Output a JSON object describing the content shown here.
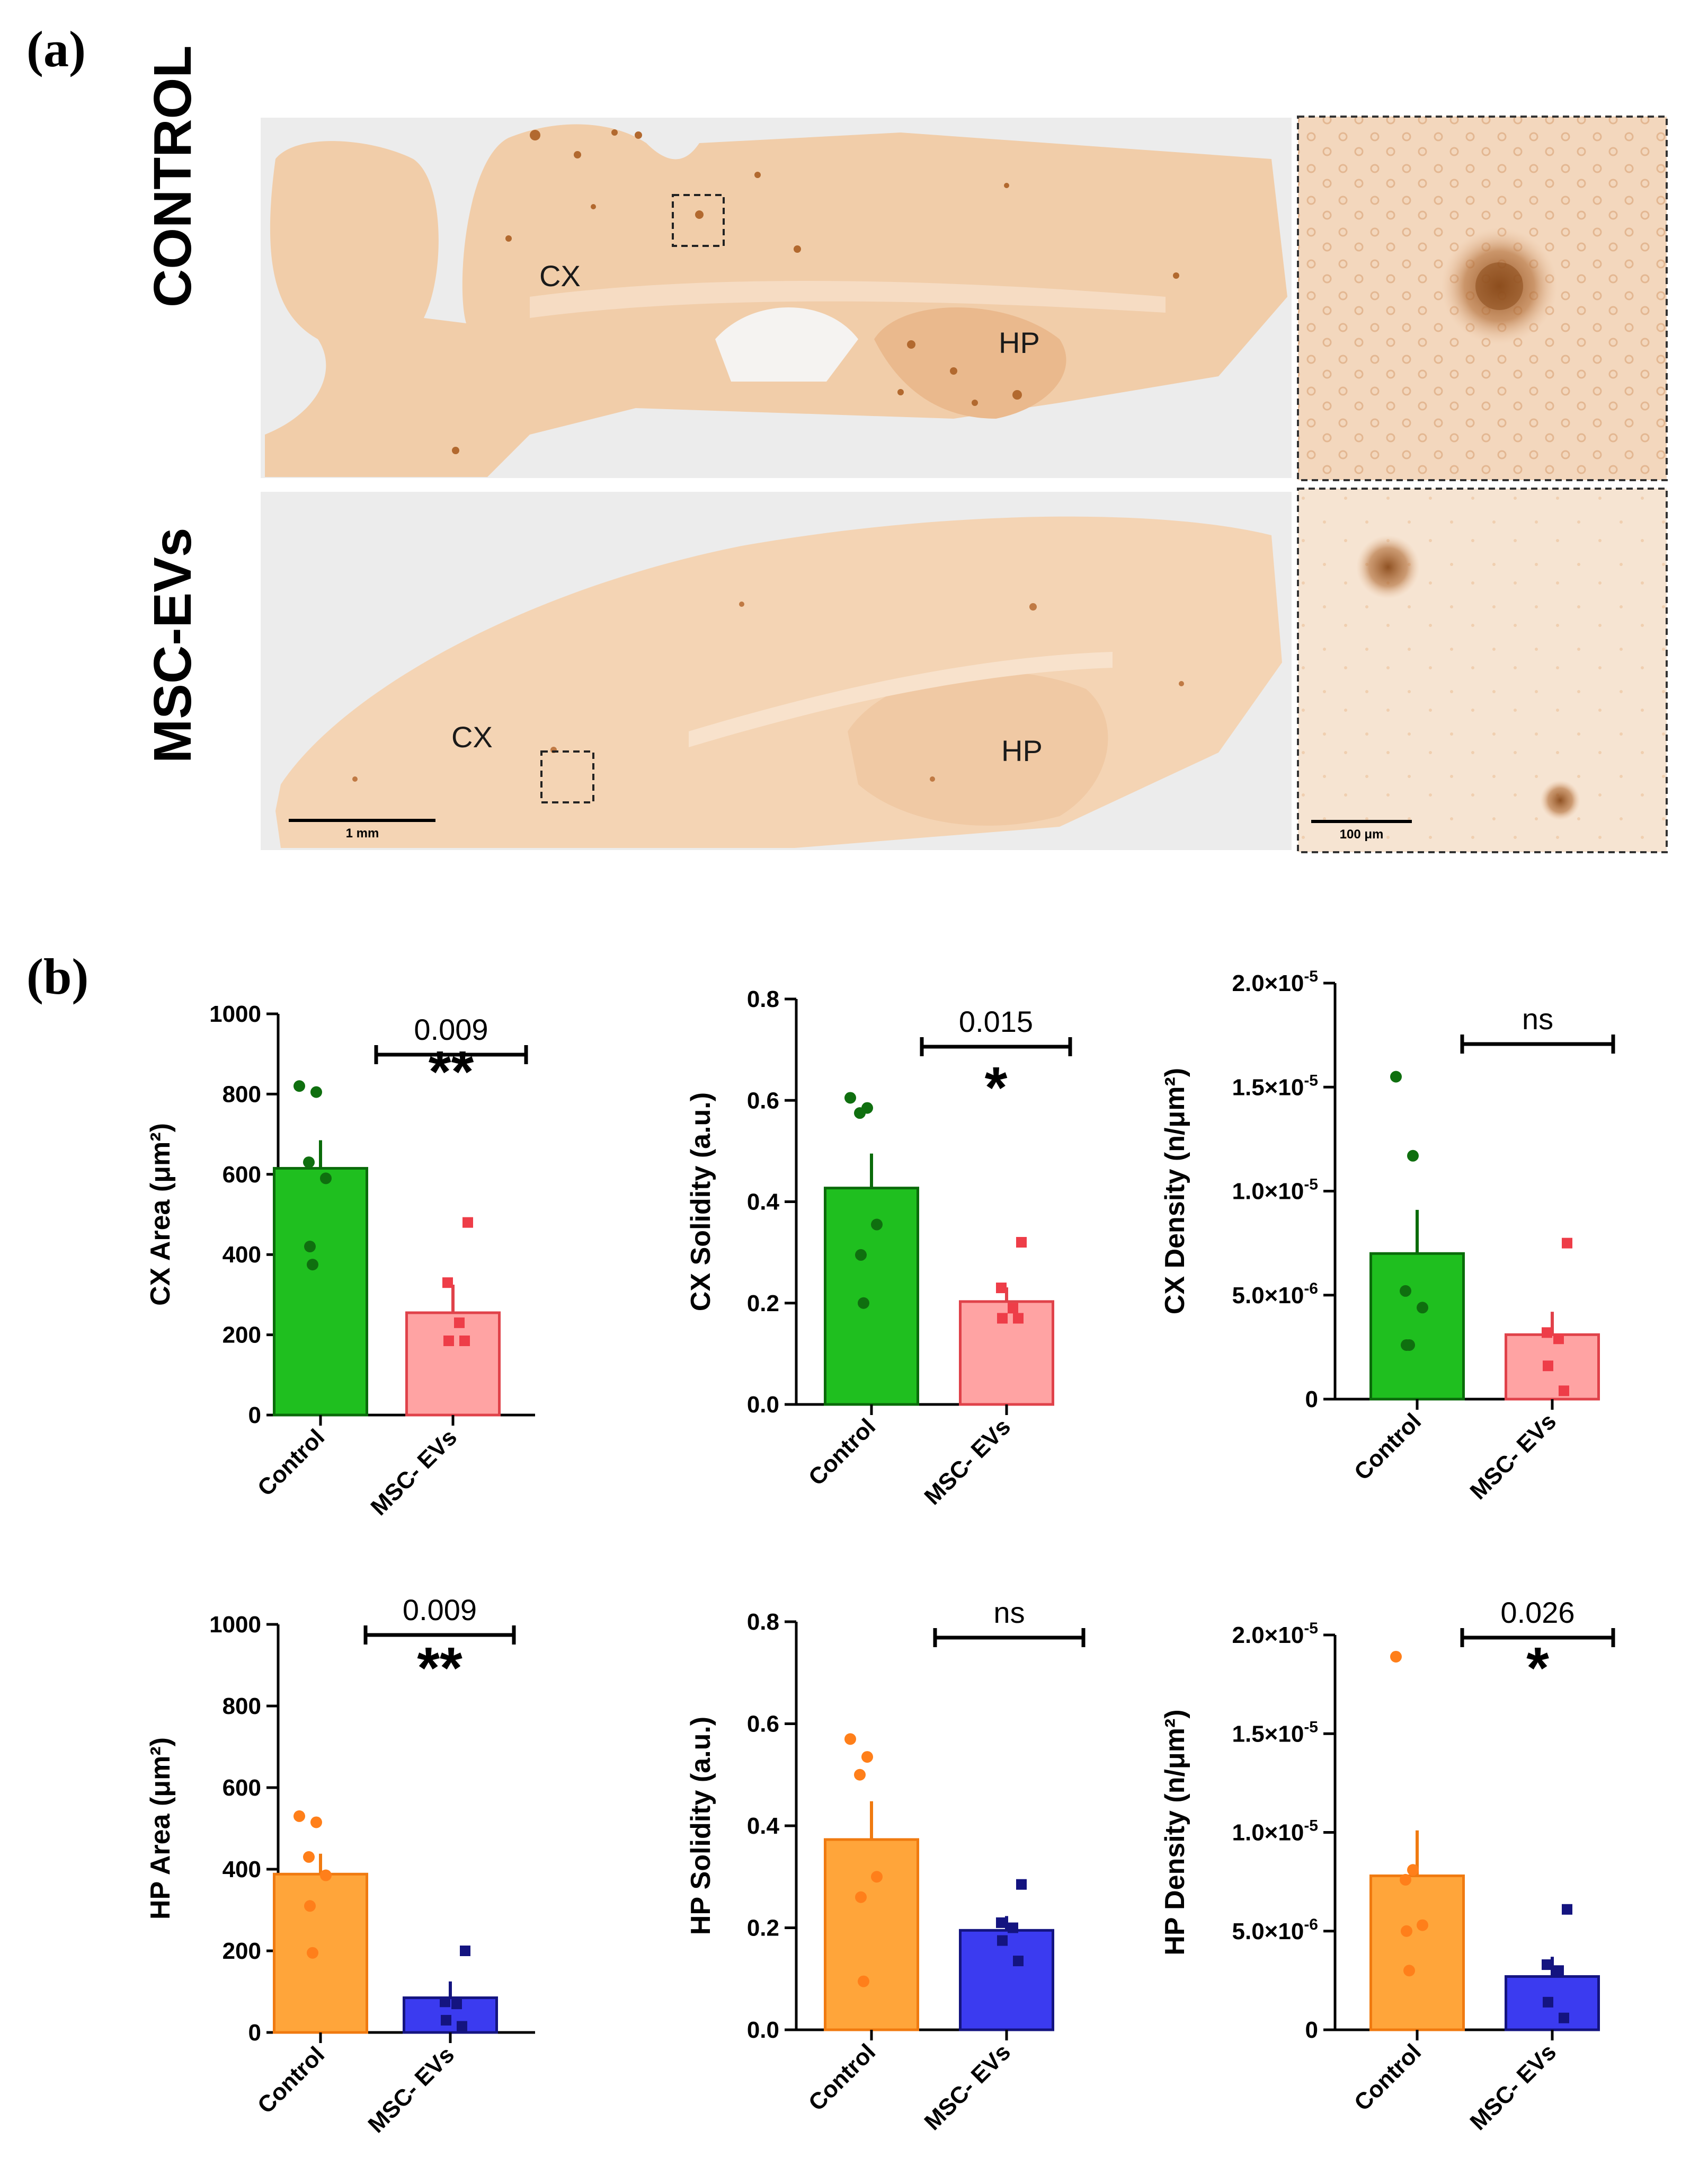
{
  "panel_a": {
    "label": "(a)",
    "rows": [
      {
        "label": "CONTROL",
        "region_cx": "CX",
        "region_hp": "HP"
      },
      {
        "label": "MSC-EVs",
        "region_cx": "CX",
        "region_hp": "HP"
      }
    ],
    "scale_bar_main": "1 mm",
    "scale_bar_inset": "100 μm"
  },
  "panel_b": {
    "label": "(b)"
  },
  "chart_data": [
    {
      "type": "bar",
      "id": "cx-area",
      "ylabel": "CX Area (μm²)",
      "ylim": [
        0,
        1000
      ],
      "yticks": [
        0,
        200,
        400,
        600,
        800,
        1000
      ],
      "ytick_labels": [
        "0",
        "200",
        "400",
        "600",
        "800",
        "1000"
      ],
      "categories": [
        "Control",
        "MSC- EVs"
      ],
      "values": [
        615,
        255
      ],
      "errors": [
        70,
        70
      ],
      "points": [
        [
          820,
          805,
          630,
          590,
          420,
          375
        ],
        [
          480,
          330,
          230,
          185,
          185
        ]
      ],
      "colors": {
        "fill": [
          "#1fbf1f",
          "#ffa3a3"
        ],
        "edge": [
          "#0a6b0a",
          "#e0424a"
        ],
        "points": [
          "#0f6f0f",
          "#ee3d48"
        ]
      },
      "markers": [
        "circle",
        "square"
      ],
      "annotation": {
        "pvalue": "0.009",
        "stars": "**"
      }
    },
    {
      "type": "bar",
      "id": "cx-solidity",
      "ylabel": "CX Solidity (a.u.)",
      "ylim": [
        0,
        0.8
      ],
      "yticks": [
        0,
        0.2,
        0.4,
        0.6,
        0.8
      ],
      "ytick_labels": [
        "0.0",
        "0.2",
        "0.4",
        "0.6",
        "0.8"
      ],
      "categories": [
        "Control",
        "MSC- EVs"
      ],
      "values": [
        0.427,
        0.203
      ],
      "errors": [
        0.068,
        0.028
      ],
      "points": [
        [
          0.605,
          0.585,
          0.575,
          0.355,
          0.295,
          0.2
        ],
        [
          0.32,
          0.23,
          0.19,
          0.17,
          0.17
        ]
      ],
      "colors": {
        "fill": [
          "#1fbf1f",
          "#ffa3a3"
        ],
        "edge": [
          "#0a6b0a",
          "#e0424a"
        ],
        "points": [
          "#0f6f0f",
          "#ee3d48"
        ]
      },
      "markers": [
        "circle",
        "square"
      ],
      "annotation": {
        "pvalue": "0.015",
        "stars": "*"
      }
    },
    {
      "type": "bar",
      "id": "cx-density",
      "ylabel": "CX Density (n/μm²)",
      "ylim": [
        0,
        2e-05
      ],
      "yticks": [
        0,
        5e-06,
        1e-05,
        1.5e-05,
        2e-05
      ],
      "ytick_labels": [
        {
          "base": "0",
          "exp": ""
        },
        {
          "base": "5.0×10",
          "exp": "-6"
        },
        {
          "base": "1.0×10",
          "exp": "-5"
        },
        {
          "base": "1.5×10",
          "exp": "-5"
        },
        {
          "base": "2.0×10",
          "exp": "-5"
        }
      ],
      "categories": [
        "Control",
        "MSC- EVs"
      ],
      "values": [
        7e-06,
        3.1e-06
      ],
      "errors": [
        2.1e-06,
        1.1e-06
      ],
      "points": [
        [
          1.55e-05,
          1.17e-05,
          5.2e-06,
          4.4e-06,
          2.6e-06,
          2.6e-06
        ],
        [
          7.5e-06,
          3.2e-06,
          2.9e-06,
          1.6e-06,
          4e-07
        ]
      ],
      "colors": {
        "fill": [
          "#1fbf1f",
          "#ffa3a3"
        ],
        "edge": [
          "#0a6b0a",
          "#e0424a"
        ],
        "points": [
          "#0f6f0f",
          "#ee3d48"
        ]
      },
      "markers": [
        "circle",
        "square"
      ],
      "annotation": {
        "pvalue": "ns",
        "stars": ""
      }
    },
    {
      "type": "bar",
      "id": "hp-area",
      "ylabel": "HP Area (μm²)",
      "ylim": [
        0,
        1000
      ],
      "yticks": [
        0,
        200,
        400,
        600,
        800,
        1000
      ],
      "ytick_labels": [
        "0",
        "200",
        "400",
        "600",
        "800",
        "1000"
      ],
      "categories": [
        "Control",
        "MSC- EVs"
      ],
      "values": [
        388,
        85
      ],
      "errors": [
        50,
        40
      ],
      "points": [
        [
          530,
          515,
          430,
          385,
          310,
          195
        ],
        [
          200,
          75,
          70,
          30,
          15
        ]
      ],
      "colors": {
        "fill": [
          "#ffa53a",
          "#3b3bf0"
        ],
        "edge": [
          "#f07a10",
          "#141480"
        ],
        "points": [
          "#ff7f1a",
          "#141480"
        ]
      },
      "markers": [
        "circle",
        "square"
      ],
      "annotation": {
        "pvalue": "0.009",
        "stars": "**"
      }
    },
    {
      "type": "bar",
      "id": "hp-solidity",
      "ylabel": "HP Solidity (a.u.)",
      "ylim": [
        0,
        0.8
      ],
      "yticks": [
        0,
        0.2,
        0.4,
        0.6,
        0.8
      ],
      "ytick_labels": [
        "0.0",
        "0.2",
        "0.4",
        "0.6",
        "0.8"
      ],
      "categories": [
        "Control",
        "MSC- EVs"
      ],
      "values": [
        0.373,
        0.195
      ],
      "errors": [
        0.075,
        0.028
      ],
      "points": [
        [
          0.57,
          0.535,
          0.5,
          0.3,
          0.26,
          0.095
        ],
        [
          0.285,
          0.21,
          0.2,
          0.175,
          0.135
        ]
      ],
      "colors": {
        "fill": [
          "#ffa53a",
          "#3b3bf0"
        ],
        "edge": [
          "#f07a10",
          "#141480"
        ],
        "points": [
          "#ff7f1a",
          "#141480"
        ]
      },
      "markers": [
        "circle",
        "square"
      ],
      "annotation": {
        "pvalue": "ns",
        "stars": ""
      }
    },
    {
      "type": "bar",
      "id": "hp-density",
      "ylabel": "HP Density (n/μm²)",
      "ylim": [
        0,
        2e-05
      ],
      "yticks": [
        0,
        5e-06,
        1e-05,
        1.5e-05,
        2e-05
      ],
      "ytick_labels": [
        {
          "base": "0",
          "exp": ""
        },
        {
          "base": "5.0×10",
          "exp": "-6"
        },
        {
          "base": "1.0×10",
          "exp": "-5"
        },
        {
          "base": "1.5×10",
          "exp": "-5"
        },
        {
          "base": "2.0×10",
          "exp": "-5"
        }
      ],
      "categories": [
        "Control",
        "MSC- EVs"
      ],
      "values": [
        7.8e-06,
        2.7e-06
      ],
      "errors": [
        2.3e-06,
        1e-06
      ],
      "points": [
        [
          1.89e-05,
          8.1e-06,
          7.6e-06,
          5.3e-06,
          5e-06,
          3e-06
        ],
        [
          6.1e-06,
          3.3e-06,
          3e-06,
          1.4e-06,
          6e-07
        ]
      ],
      "colors": {
        "fill": [
          "#ffa53a",
          "#3b3bf0"
        ],
        "edge": [
          "#f07a10",
          "#141480"
        ],
        "points": [
          "#ff7f1a",
          "#141480"
        ]
      },
      "markers": [
        "circle",
        "square"
      ],
      "annotation": {
        "pvalue": "0.026",
        "stars": "*"
      }
    }
  ]
}
